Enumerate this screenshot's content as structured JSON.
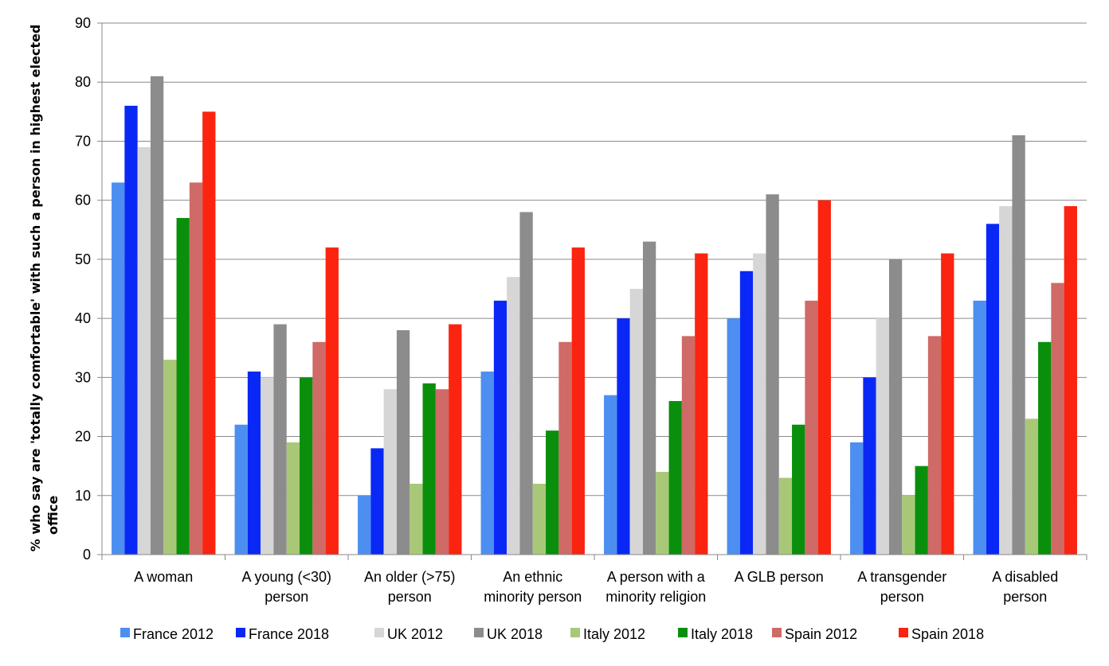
{
  "chart_data": {
    "type": "bar",
    "title": "",
    "xlabel": "",
    "ylabel": "% who say are 'totally comfortable' with such a person in highest elected office",
    "ylim": [
      0,
      90
    ],
    "yticks": [
      0,
      10,
      20,
      30,
      40,
      50,
      60,
      70,
      80,
      90
    ],
    "grid": "horizontal",
    "legend_position": "bottom",
    "categories": [
      "A woman",
      "A young (<30) person",
      "An older (>75) person",
      "An ethnic minority person",
      "A person with a minority religion",
      "A GLB person",
      "A transgender person",
      "A disabled person"
    ],
    "category_lines": [
      [
        "A woman"
      ],
      [
        "A young (<30)",
        "person"
      ],
      [
        "An older (>75)",
        "person"
      ],
      [
        "An ethnic",
        "minority person"
      ],
      [
        "A person with a",
        "minority religion"
      ],
      [
        "A GLB person"
      ],
      [
        "A transgender",
        "person"
      ],
      [
        "A disabled",
        "person"
      ]
    ],
    "series": [
      {
        "name": "France 2012",
        "color": "#4d8ff0",
        "values": [
          63,
          22,
          10,
          31,
          27,
          40,
          19,
          43
        ]
      },
      {
        "name": "France 2018",
        "color": "#0a28f5",
        "values": [
          76,
          31,
          18,
          43,
          40,
          48,
          30,
          56
        ]
      },
      {
        "name": "UK 2012",
        "color": "#d6d6d6",
        "values": [
          69,
          30,
          28,
          47,
          45,
          51,
          40,
          59
        ]
      },
      {
        "name": "UK 2018",
        "color": "#8c8c8c",
        "values": [
          81,
          39,
          38,
          58,
          53,
          61,
          50,
          71
        ]
      },
      {
        "name": "Italy 2012",
        "color": "#a8c878",
        "values": [
          33,
          19,
          12,
          12,
          14,
          13,
          10,
          23
        ]
      },
      {
        "name": "Italy 2018",
        "color": "#098f0c",
        "values": [
          57,
          30,
          29,
          21,
          26,
          22,
          15,
          36
        ]
      },
      {
        "name": "Spain 2012",
        "color": "#cf6a66",
        "values": [
          63,
          36,
          28,
          36,
          37,
          43,
          37,
          46
        ]
      },
      {
        "name": "Spain 2018",
        "color": "#fa2410",
        "values": [
          75,
          52,
          39,
          52,
          51,
          60,
          51,
          59
        ]
      }
    ]
  }
}
